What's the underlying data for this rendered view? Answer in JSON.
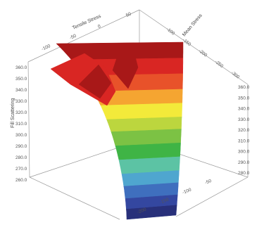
{
  "chart_data": {
    "type": "surface3d",
    "title": "",
    "axes": {
      "x_label": "Tensile Stress",
      "y_label": "Mean Stress",
      "z_label": "Fill Scattering",
      "x_ticks": [
        "-100",
        "-50",
        "0",
        "50"
      ],
      "y_ticks": [
        "-100",
        "-150",
        "-200",
        "-250",
        "-300"
      ],
      "z_ticks": [
        "360.0",
        "350.0",
        "340.0",
        "330.0",
        "320.0",
        "310.0",
        "300.0",
        "290.0",
        "280.0",
        "270.0",
        "260.0"
      ],
      "z_ticks_right": [
        "360.0",
        "350.0",
        "340.0",
        "330.0",
        "320.0",
        "310.0",
        "300.0",
        "290.0",
        "280.0"
      ],
      "bottom_ticks": [
        "-200",
        "-150",
        "-100",
        "-50"
      ],
      "zlim": [
        260,
        360
      ]
    },
    "bands": [
      {
        "level": 260,
        "color": "#28307a"
      },
      {
        "level": 270,
        "color": "#3447a0"
      },
      {
        "level": 280,
        "color": "#3f6fbe"
      },
      {
        "level": 290,
        "color": "#4fa6cf"
      },
      {
        "level": 300,
        "color": "#5cc3a4"
      },
      {
        "level": 310,
        "color": "#3fb445"
      },
      {
        "level": 320,
        "color": "#7cc244"
      },
      {
        "level": 330,
        "color": "#bcd63e"
      },
      {
        "level": 340,
        "color": "#f3ea3a"
      },
      {
        "level": 350,
        "color": "#f5a531"
      },
      {
        "level": 355,
        "color": "#e8522a"
      },
      {
        "level": 360,
        "color": "#d92623"
      },
      {
        "level": 365,
        "color": "#a81818"
      }
    ],
    "grid": false,
    "legend": "none"
  }
}
